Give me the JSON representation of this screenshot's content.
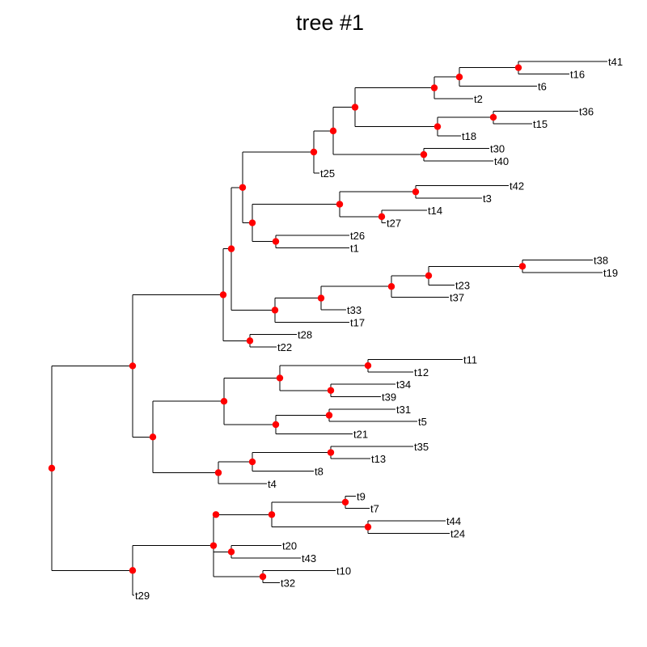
{
  "title": "tree #1",
  "colors": {
    "node": "#ff0000",
    "branch": "#000000",
    "background": "#ffffff"
  },
  "tree": {
    "layout": "rectangular",
    "direction": "left-to-right",
    "tip_order": [
      "t41",
      "t16",
      "t6",
      "t2",
      "t36",
      "t15",
      "t18",
      "t30",
      "t40",
      "t25",
      "t42",
      "t3",
      "t14",
      "t27",
      "t26",
      "t1",
      "t38",
      "t19",
      "t23",
      "t37",
      "t33",
      "t17",
      "t28",
      "t22",
      "t11",
      "t12",
      "t34",
      "t39",
      "t31",
      "t5",
      "t21",
      "t35",
      "t13",
      "t8",
      "t4",
      "t9",
      "t7",
      "t44",
      "t24",
      "t20",
      "t43",
      "t10",
      "t32",
      "t29"
    ],
    "newick": "((((((((((t41,t16),t6),t2),((t36,t15),t18)),(t30,t40)),t25),(((t42,t3),(t14,t27)),(t26,t1))),(((((t38,t19),t23),t37),t33),t17)),(t28,t22)),((((t11,t12),(t34,t39)),((t31,t5),t21)),(((t35,t13),t8),t4))),((((t9,t7),(t44,t24)),((t20,t43),(t10,t32))),t29));"
  }
}
